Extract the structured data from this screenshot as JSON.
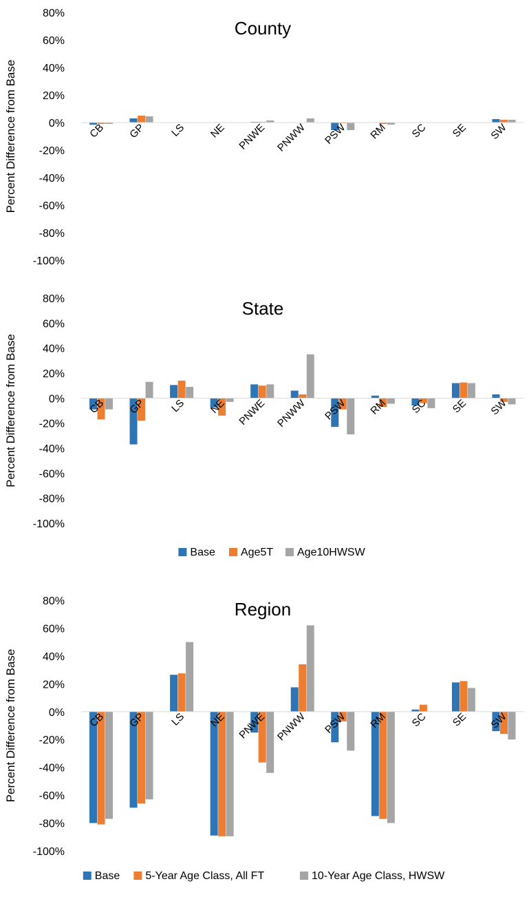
{
  "colors": {
    "base": "#2e75b6",
    "series2": "#ed7d31",
    "series3": "#a5a5a5"
  },
  "legends": [
    {
      "items": [
        "Base",
        "Age5T",
        "Age10HWSW"
      ]
    },
    {
      "items": [
        "Base",
        "5-Year Age Class, All FT",
        "10-Year Age Class, HWSW"
      ]
    }
  ],
  "chart_data": [
    {
      "type": "bar",
      "title": "County",
      "ylabel": "Percent Difference from Base",
      "ylim": [
        -100,
        80
      ],
      "yticks": [
        "80%",
        "60%",
        "40%",
        "20%",
        "0%",
        "-20%",
        "-40%",
        "-60%",
        "-80%",
        "-100%"
      ],
      "categories": [
        "CB",
        "GP",
        "LS",
        "NE",
        "PNWE",
        "PNWW",
        "PSW",
        "RM",
        "SC",
        "SE",
        "SW"
      ],
      "series": [
        {
          "name": "Base",
          "values": [
            -1.5,
            3,
            0,
            0,
            0.5,
            0,
            -5.5,
            0,
            0,
            0,
            2.5
          ]
        },
        {
          "name": "Age5T",
          "values": [
            -1,
            5,
            0,
            0,
            0.5,
            0,
            -0.5,
            -1,
            0,
            0,
            2
          ]
        },
        {
          "name": "Age10HWSW",
          "values": [
            -1,
            4.5,
            0,
            0,
            1.5,
            3,
            -5.5,
            -1.5,
            0,
            0,
            2
          ]
        }
      ]
    },
    {
      "type": "bar",
      "title": "State",
      "ylabel": "Percent Difference from Base",
      "ylim": [
        -100,
        80
      ],
      "yticks": [
        "80%",
        "60%",
        "40%",
        "20%",
        "0%",
        "-20%",
        "-40%",
        "-60%",
        "-80%",
        "-100%"
      ],
      "categories": [
        "CB",
        "GP",
        "LS",
        "NE",
        "PNWE",
        "PNWW",
        "PSW",
        "RM",
        "SC",
        "SE",
        "SW"
      ],
      "series": [
        {
          "name": "Base",
          "values": [
            -9,
            -37,
            10.5,
            -7.5,
            11,
            6,
            -23,
            2,
            -6,
            12,
            3
          ]
        },
        {
          "name": "Age5T",
          "values": [
            -17,
            -18,
            14,
            -14,
            10,
            3,
            -9,
            -7,
            -4,
            12.5,
            -3
          ]
        },
        {
          "name": "Age10HWSW",
          "values": [
            -9,
            13,
            9,
            -3,
            11,
            35,
            -29,
            -4.5,
            -8,
            12,
            -5
          ]
        }
      ]
    },
    {
      "type": "bar",
      "title": "Region",
      "ylabel": "Percent Difference from Base",
      "ylim": [
        -100,
        80
      ],
      "yticks": [
        "80%",
        "60%",
        "40%",
        "20%",
        "0%",
        "-20%",
        "-40%",
        "-60%",
        "-80%",
        "-100%"
      ],
      "categories": [
        "CB",
        "GP",
        "LS",
        "NE",
        "PNWE",
        "PNWW",
        "PSW",
        "RM",
        "SC",
        "SE",
        "SW"
      ],
      "series": [
        {
          "name": "Base",
          "values": [
            -80,
            -69,
            26.5,
            -89,
            -15,
            17.5,
            -22,
            -75,
            1.5,
            21,
            -14
          ]
        },
        {
          "name": "5-Year Age Class, All FT",
          "values": [
            -81,
            -66,
            27.5,
            -89.5,
            -36.5,
            34,
            -7,
            -77,
            5,
            22,
            -16
          ]
        },
        {
          "name": "10-Year Age Class, HWSW",
          "values": [
            -77,
            -63,
            50,
            -89.5,
            -44,
            62,
            -28,
            -80,
            0,
            17,
            -20
          ]
        }
      ]
    }
  ]
}
